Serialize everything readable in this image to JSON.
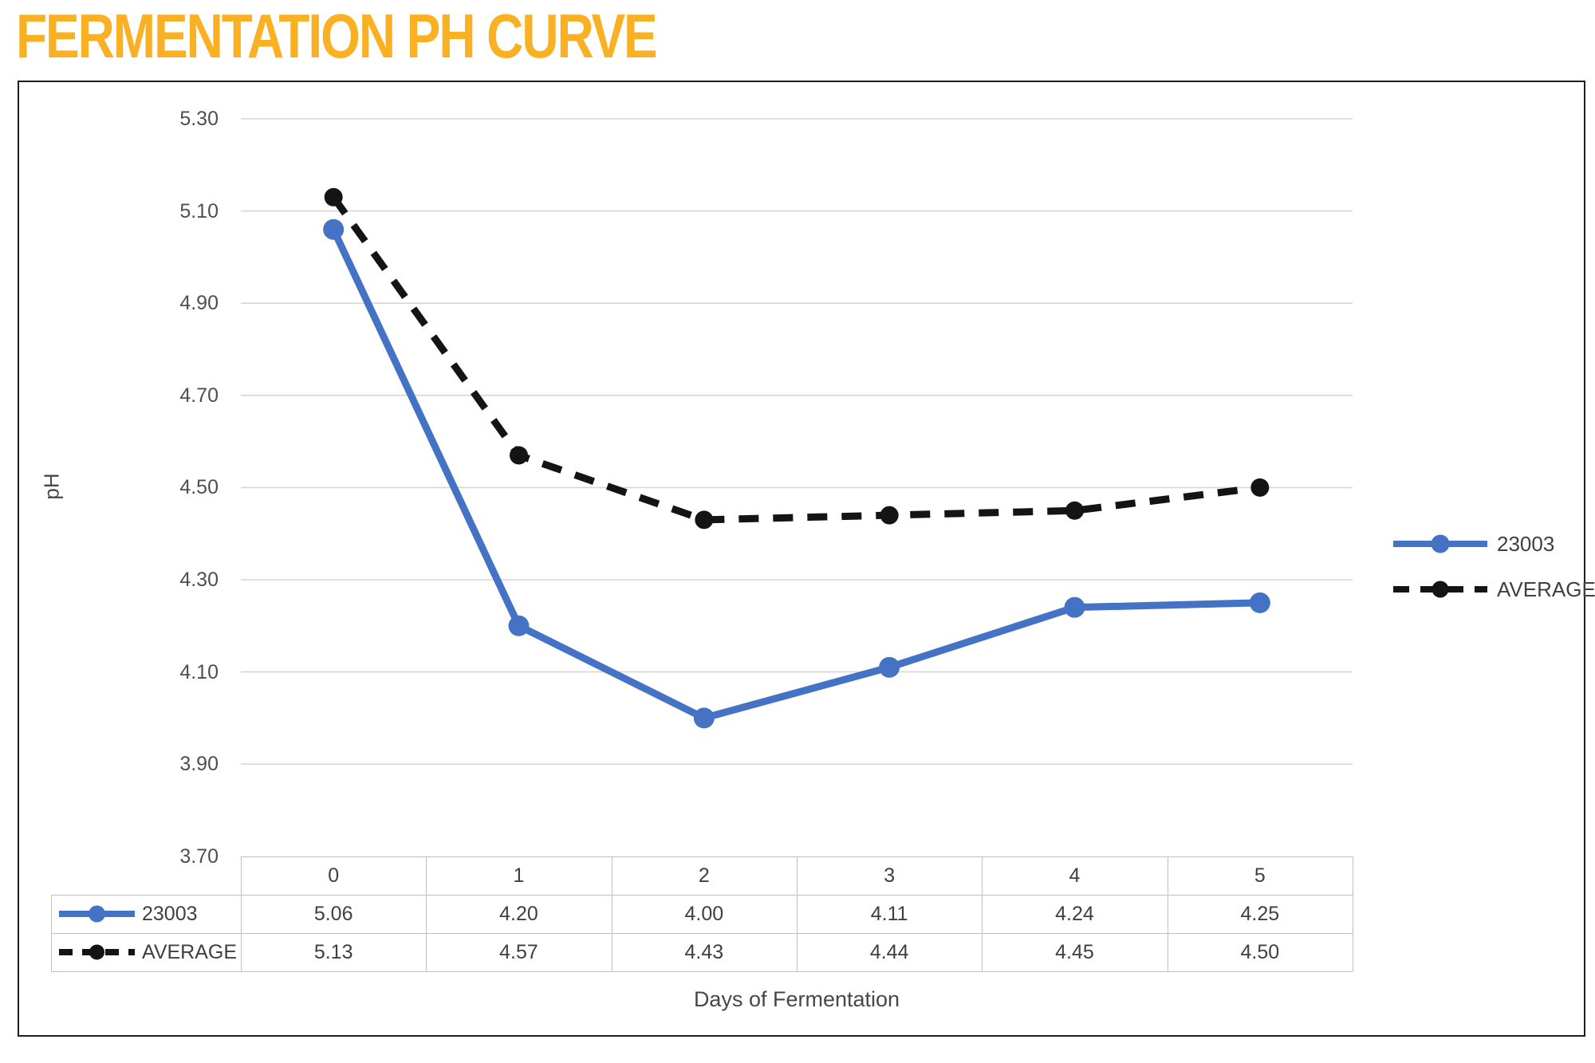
{
  "page": {
    "title": "FERMENTATION PH CURVE"
  },
  "colors": {
    "title": "#F9B123",
    "series_23003": "#4472C4",
    "series_average": "#141414",
    "grid": "#d6d6d6",
    "table_border": "#c0c0c0",
    "container_border": "#1f1f1f",
    "axis_text": "#4f4f4f",
    "table_text": "#3f3f3f"
  },
  "chart_data": {
    "type": "line",
    "title": "FERMENTATION PH CURVE",
    "xlabel": "Days of Fermentation",
    "ylabel": "pH",
    "categories": [
      "0",
      "1",
      "2",
      "3",
      "4",
      "5"
    ],
    "series": [
      {
        "name": "23003",
        "values": [
          5.06,
          4.2,
          4.0,
          4.11,
          4.24,
          4.25
        ],
        "color": "#4472C4",
        "style": "solid",
        "marker": "circle"
      },
      {
        "name": "AVERAGE",
        "values": [
          5.13,
          4.57,
          4.43,
          4.44,
          4.45,
          4.5
        ],
        "color": "#141414",
        "style": "dashed",
        "marker": "circle"
      }
    ],
    "ylim": [
      3.7,
      5.3
    ],
    "yticks": [
      "3.70",
      "3.90",
      "4.10",
      "4.30",
      "4.50",
      "4.70",
      "4.90",
      "5.10",
      "5.30"
    ],
    "ytick_step": 0.2,
    "grid": true,
    "legend_position": "right",
    "data_table_shown": true
  }
}
